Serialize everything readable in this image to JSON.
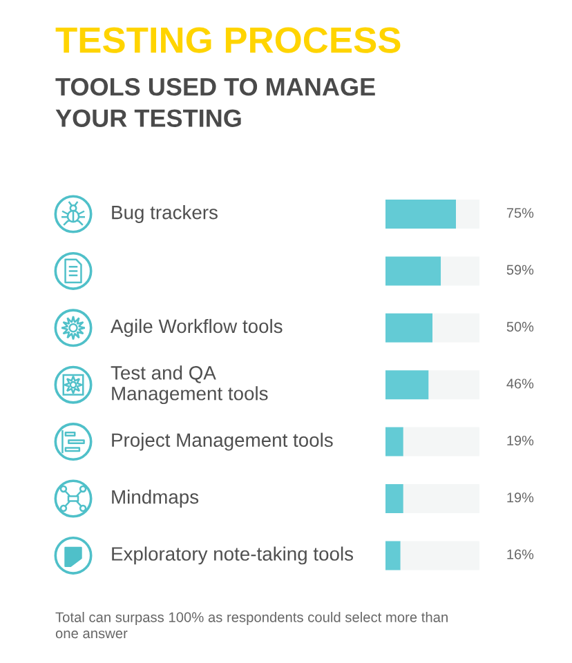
{
  "chart_data": {
    "type": "bar",
    "orientation": "horizontal",
    "stacked": true,
    "title": "TESTING PROCESS",
    "subtitle": "TOOLS USED TO MANAGE\nYOUR TESTING",
    "categories": [
      "Bug trackers",
      null,
      "Agile Workflow tools",
      "Test and QA\nManagement tools",
      "Project Management tools",
      "Mindmaps",
      "Exploratory note-taking tools"
    ],
    "series": [
      {
        "color": "#63cbd5",
        "values": [
          75,
          59,
          50,
          46,
          19,
          19,
          16
        ],
        "value_labels": [
          "75%",
          "59%",
          "50%",
          "46%",
          "19%",
          "19%",
          "16%"
        ]
      },
      {
        "color": "#f4f6f6",
        "values": [
          25,
          41,
          50,
          54,
          81,
          81,
          84
        ]
      }
    ],
    "xlim": [
      0,
      100
    ],
    "tick_labels": false,
    "annotations": [
      "Total can surpass 100% as respondents could select more than\none answer"
    ]
  }
}
